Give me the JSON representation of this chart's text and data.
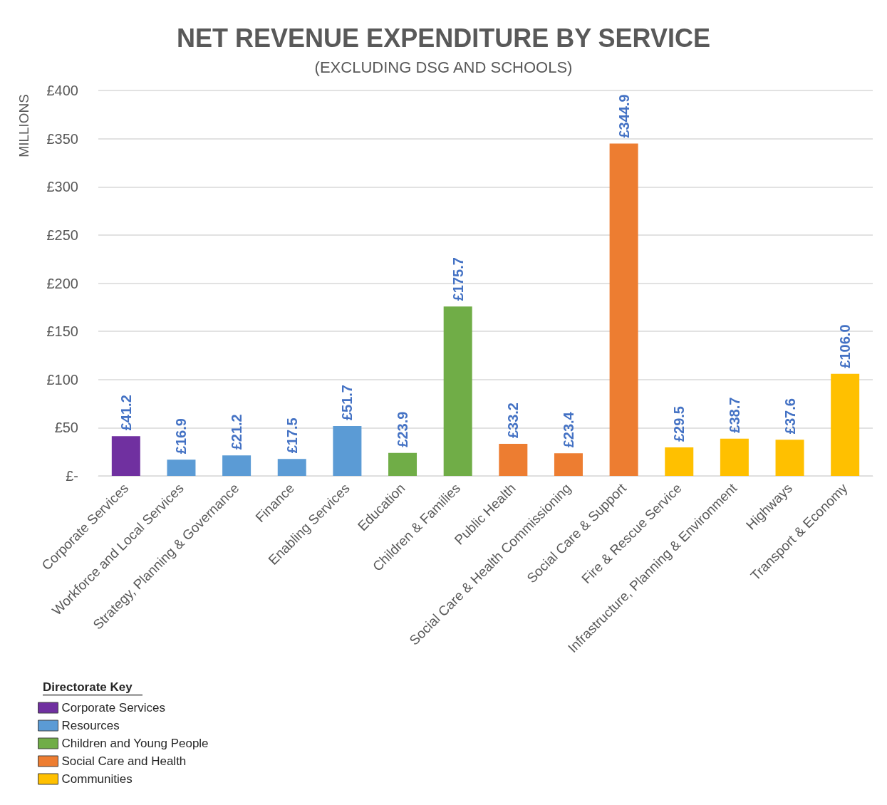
{
  "chart_data": {
    "type": "bar",
    "title": "NET REVENUE EXPENDITURE BY SERVICE",
    "subtitle": "(EXCLUDING DSG AND SCHOOLS)",
    "ylabel": "MILLIONS",
    "legend_title": "Directorate Key",
    "categories": [
      "Corporate Services",
      "Workforce and Local Services",
      "Strategy, Planning & Governance",
      "Finance",
      "Enabling Services",
      "Education",
      "Children & Families",
      "Public Health",
      "Social Care & Health Commissioning",
      "Social Care & Support",
      "Fire & Rescue Service",
      "Infrastructure, Planning & Environment",
      "Highways",
      "Transport & Economy"
    ],
    "stacked": true,
    "series": [
      {
        "name": "Corporate Services",
        "color": "#7030a0",
        "values": [
          41.2,
          null,
          null,
          null,
          null,
          null,
          null,
          null,
          null,
          null,
          null,
          null,
          null,
          null
        ],
        "value_labels": [
          "£41.2",
          null,
          null,
          null,
          null,
          null,
          null,
          null,
          null,
          null,
          null,
          null,
          null,
          null
        ]
      },
      {
        "name": "Resources",
        "color": "#5b9bd5",
        "values": [
          null,
          16.9,
          21.2,
          17.5,
          51.7,
          null,
          null,
          null,
          null,
          null,
          null,
          null,
          null,
          null
        ],
        "value_labels": [
          null,
          "£16.9",
          "£21.2",
          "£17.5",
          "£51.7",
          null,
          null,
          null,
          null,
          null,
          null,
          null,
          null,
          null
        ]
      },
      {
        "name": "Children and Young People",
        "color": "#70ad47",
        "values": [
          null,
          null,
          null,
          null,
          null,
          23.9,
          175.7,
          null,
          null,
          null,
          null,
          null,
          null,
          null
        ],
        "value_labels": [
          null,
          null,
          null,
          null,
          null,
          "£23.9",
          "£175.7",
          null,
          null,
          null,
          null,
          null,
          null,
          null
        ]
      },
      {
        "name": "Social Care and Health",
        "color": "#ed7d31",
        "values": [
          null,
          null,
          null,
          null,
          null,
          null,
          null,
          33.2,
          23.4,
          344.9,
          null,
          null,
          null,
          null
        ],
        "value_labels": [
          null,
          null,
          null,
          null,
          null,
          null,
          null,
          "£33.2",
          "£23.4",
          "£344.9",
          null,
          null,
          null,
          null
        ]
      },
      {
        "name": "Communities",
        "color": "#ffc000",
        "values": [
          null,
          null,
          null,
          null,
          null,
          null,
          null,
          null,
          null,
          null,
          29.5,
          38.7,
          37.6,
          106.0
        ],
        "value_labels": [
          null,
          null,
          null,
          null,
          null,
          null,
          null,
          null,
          null,
          null,
          "£29.5",
          "£38.7",
          "£37.6",
          "£106.0"
        ]
      }
    ],
    "ylim": [
      0,
      400
    ],
    "yticks": [
      {
        "value": 0,
        "label": "£-"
      },
      {
        "value": 50,
        "label": "£50"
      },
      {
        "value": 100,
        "label": "£100"
      },
      {
        "value": 150,
        "label": "£150"
      },
      {
        "value": 200,
        "label": "£200"
      },
      {
        "value": 250,
        "label": "£250"
      },
      {
        "value": 300,
        "label": "£300"
      },
      {
        "value": 350,
        "label": "£350"
      },
      {
        "value": 400,
        "label": "£400"
      }
    ],
    "grid": "y",
    "legend": "bottom left"
  }
}
